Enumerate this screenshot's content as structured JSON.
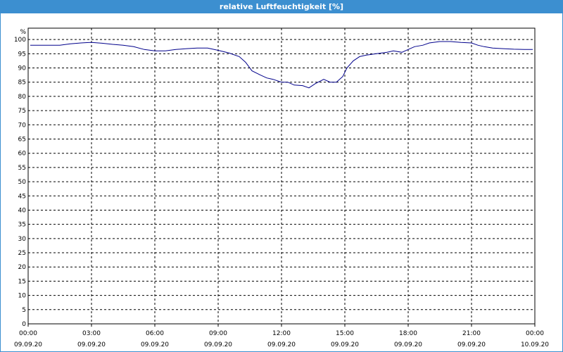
{
  "window": {
    "title": "relative Luftfeuchtigkeit [%]"
  },
  "chart_data": {
    "type": "line",
    "title": "relative Luftfeuchtigkeit [%]",
    "y_unit_label": "%",
    "ylim": [
      0,
      104
    ],
    "y_ticks": [
      0,
      5,
      10,
      15,
      20,
      25,
      30,
      35,
      40,
      45,
      50,
      55,
      60,
      65,
      70,
      75,
      80,
      85,
      90,
      95,
      100
    ],
    "xlim_hours": [
      0,
      24
    ],
    "x_ticks": [
      {
        "hour": 0,
        "time": "00:00",
        "date": "09.09.20"
      },
      {
        "hour": 3,
        "time": "03:00",
        "date": "09.09.20"
      },
      {
        "hour": 6,
        "time": "06:00",
        "date": "09.09.20"
      },
      {
        "hour": 9,
        "time": "09:00",
        "date": "09.09.20"
      },
      {
        "hour": 12,
        "time": "12:00",
        "date": "09.09.20"
      },
      {
        "hour": 15,
        "time": "15:00",
        "date": "09.09.20"
      },
      {
        "hour": 18,
        "time": "18:00",
        "date": "09.09.20"
      },
      {
        "hour": 21,
        "time": "21:00",
        "date": "09.09.20"
      },
      {
        "hour": 24,
        "time": "00:00",
        "date": "10.09.20"
      }
    ],
    "grid": true,
    "line_color": "#00008b",
    "series": [
      {
        "x": [
          0.1,
          0.5,
          1.0,
          1.5,
          2.0,
          2.5,
          3.0,
          3.5,
          4.0,
          4.5,
          5.0,
          5.5,
          6.0,
          6.5,
          7.0,
          7.5,
          8.0,
          8.5,
          9.0,
          9.5,
          10.0,
          10.3,
          10.6,
          11.0,
          11.3,
          11.6,
          12.0,
          12.3,
          12.6,
          13.0,
          13.3,
          13.6,
          14.0,
          14.3,
          14.6,
          14.9,
          15.1,
          15.4,
          15.7,
          16.0,
          16.5,
          17.0,
          17.3,
          17.7,
          18.0,
          18.3,
          18.7,
          19.0,
          19.5,
          20.0,
          20.5,
          21.0,
          21.3,
          21.6,
          22.0,
          22.5,
          23.0,
          23.5,
          23.9
        ],
        "values": [
          98.0,
          98.0,
          98.0,
          98.0,
          98.5,
          98.8,
          99.0,
          98.7,
          98.3,
          98.0,
          97.5,
          96.5,
          96.0,
          96.0,
          96.5,
          96.8,
          97.0,
          97.0,
          96.2,
          95.3,
          94.0,
          92.0,
          89.0,
          87.5,
          86.5,
          86.0,
          85.0,
          85.0,
          84.0,
          83.8,
          83.0,
          84.5,
          86.0,
          85.0,
          85.0,
          87.0,
          90.0,
          92.5,
          94.0,
          94.5,
          95.0,
          95.5,
          96.0,
          95.5,
          96.5,
          97.5,
          98.0,
          98.8,
          99.3,
          99.3,
          99.0,
          98.8,
          98.0,
          97.5,
          97.0,
          96.8,
          96.6,
          96.5,
          96.5
        ]
      }
    ]
  }
}
